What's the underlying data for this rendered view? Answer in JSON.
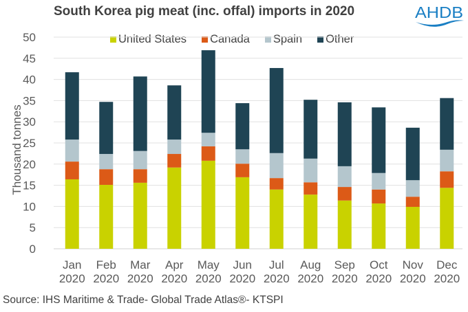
{
  "chart_data": {
    "type": "bar",
    "stacked": true,
    "title": "South Korea pig meat (inc. offal) imports in 2020",
    "xlabel": "",
    "ylabel": "Thousand tonnes",
    "ylim": [
      0,
      50
    ],
    "yticks": [
      0,
      5,
      10,
      15,
      20,
      25,
      30,
      35,
      40,
      45,
      50
    ],
    "grid": true,
    "legend_position": "top",
    "categories": [
      [
        "Jan",
        "2020"
      ],
      [
        "Feb",
        "2020"
      ],
      [
        "Mar",
        "2020"
      ],
      [
        "Apr",
        "2020"
      ],
      [
        "May",
        "2020"
      ],
      [
        "Jun",
        "2020"
      ],
      [
        "Jul",
        "2020"
      ],
      [
        "Aug",
        "2020"
      ],
      [
        "Sep",
        "2020"
      ],
      [
        "Oct",
        "2020"
      ],
      [
        "Nov",
        "2020"
      ],
      [
        "Dec",
        "2020"
      ]
    ],
    "series": [
      {
        "name": "United States",
        "color": "#c9d200",
        "values": [
          16.4,
          15.1,
          15.6,
          19.2,
          20.8,
          16.9,
          14.0,
          12.8,
          11.4,
          10.7,
          9.9,
          14.4
        ]
      },
      {
        "name": "Canada",
        "color": "#dc5a17",
        "values": [
          4.2,
          3.7,
          3.2,
          3.2,
          3.4,
          3.2,
          2.7,
          2.9,
          3.2,
          3.3,
          2.4,
          3.9
        ]
      },
      {
        "name": "Spain",
        "color": "#b4c6cd",
        "values": [
          5.2,
          3.6,
          4.3,
          3.4,
          3.2,
          3.4,
          5.9,
          5.6,
          4.9,
          3.9,
          3.9,
          5.1
        ]
      },
      {
        "name": "Other",
        "color": "#1f4454",
        "values": [
          15.9,
          12.3,
          17.6,
          12.8,
          19.5,
          10.9,
          20.1,
          13.9,
          15.1,
          15.5,
          12.4,
          12.2
        ]
      }
    ]
  },
  "logo": {
    "text": "AHDB",
    "color": "#1a7fc4"
  },
  "source": "Source: IHS Maritime & Trade- Global Trade Atlas®- KTSPI"
}
